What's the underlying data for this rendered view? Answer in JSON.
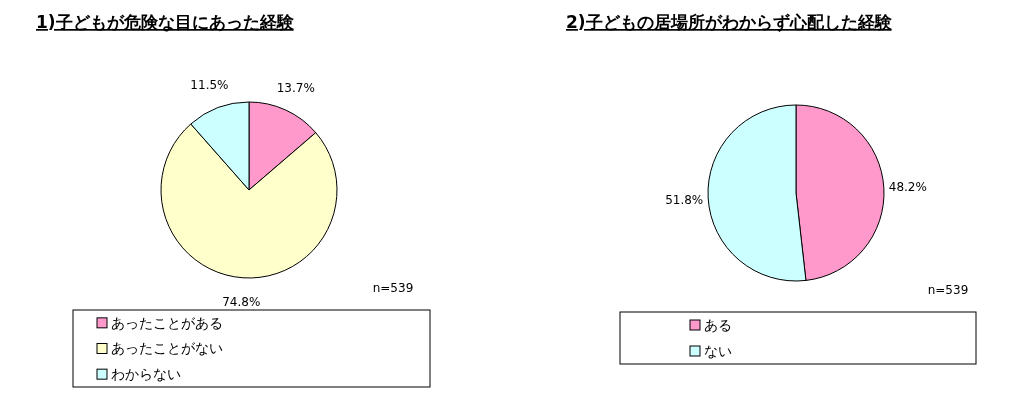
{
  "chart_data": [
    {
      "type": "pie",
      "title": "1)子どもが危険な目にあった経験",
      "categories": [
        "あったことがある",
        "あったことがない",
        "わからない"
      ],
      "values": [
        13.7,
        74.8,
        11.5
      ],
      "value_labels": [
        "13.7%",
        "74.8%",
        "11.5%"
      ],
      "colors": [
        "#ff99cc",
        "#ffffcc",
        "#ccffff"
      ],
      "legend": "bottom",
      "annotations": [
        "n=539"
      ]
    },
    {
      "type": "pie",
      "title": "2)子どもの居場所がわからず心配した経験",
      "categories": [
        "ある",
        "ない"
      ],
      "values": [
        48.2,
        51.8
      ],
      "value_labels": [
        "48.2%",
        "51.8%"
      ],
      "colors": [
        "#ff99cc",
        "#ccffff"
      ],
      "legend": "bottom",
      "annotations": [
        "n=539"
      ]
    }
  ]
}
